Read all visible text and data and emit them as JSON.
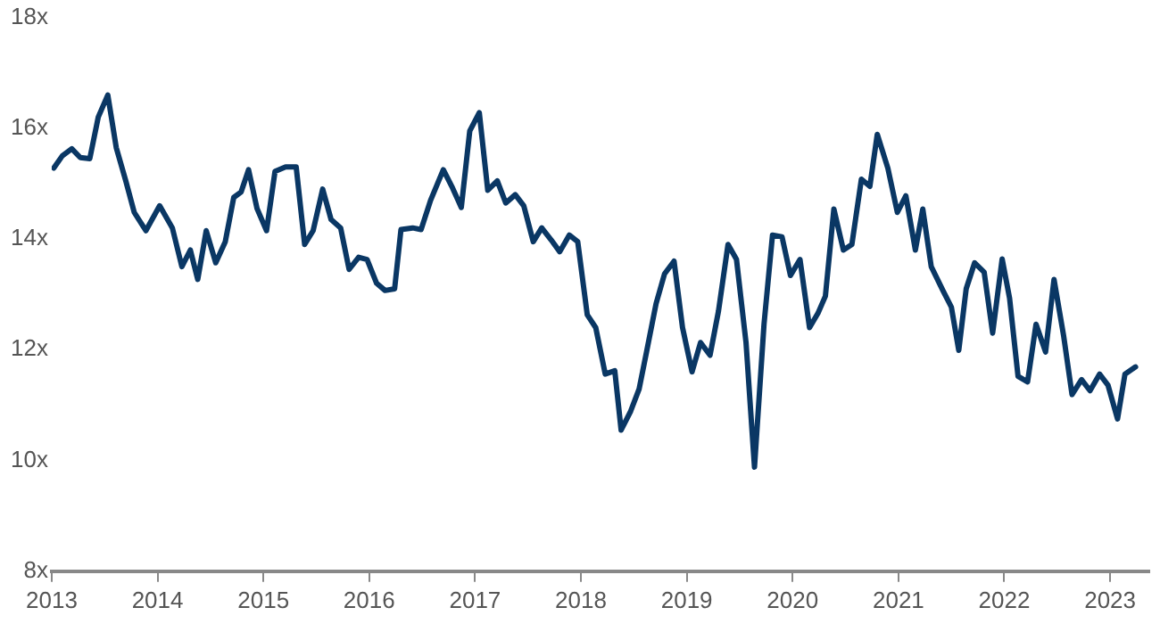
{
  "chart_data": {
    "type": "line",
    "x": [
      2013.02,
      2013.1,
      2013.19,
      2013.27,
      2013.36,
      2013.44,
      2013.53,
      2013.61,
      2013.7,
      2013.78,
      2013.89,
      2014.02,
      2014.14,
      2014.23,
      2014.31,
      2014.38,
      2014.46,
      2014.55,
      2014.64,
      2014.72,
      2014.79,
      2014.86,
      2014.94,
      2015.03,
      2015.11,
      2015.21,
      2015.31,
      2015.39,
      2015.47,
      2015.56,
      2015.64,
      2015.73,
      2015.81,
      2015.9,
      2015.98,
      2016.07,
      2016.15,
      2016.24,
      2016.3,
      2016.41,
      2016.49,
      2016.58,
      2016.7,
      2016.78,
      2016.87,
      2016.95,
      2017.04,
      2017.12,
      2017.21,
      2017.29,
      2017.38,
      2017.46,
      2017.55,
      2017.63,
      2017.72,
      2017.8,
      2017.89,
      2017.97,
      2018.06,
      2018.14,
      2018.23,
      2018.32,
      2018.38,
      2018.47,
      2018.55,
      2018.62,
      2018.71,
      2018.79,
      2018.88,
      2018.96,
      2019.05,
      2019.13,
      2019.22,
      2019.3,
      2019.39,
      2019.47,
      2019.56,
      2019.64,
      2019.73,
      2019.81,
      2019.9,
      2019.98,
      2020.07,
      2020.16,
      2020.24,
      2020.31,
      2020.39,
      2020.48,
      2020.56,
      2020.65,
      2020.73,
      2020.8,
      2020.9,
      2020.99,
      2021.07,
      2021.16,
      2021.23,
      2021.31,
      2021.42,
      2021.5,
      2021.57,
      2021.64,
      2021.72,
      2021.81,
      2021.89,
      2021.98,
      2022.05,
      2022.13,
      2022.22,
      2022.3,
      2022.39,
      2022.47,
      2022.56,
      2022.64,
      2022.73,
      2022.81,
      2022.9,
      2022.98,
      2023.07,
      2023.14,
      2023.24
    ],
    "series": [
      {
        "color": "#0a3764",
        "values": [
          15.28,
          15.5,
          15.63,
          15.47,
          15.45,
          16.2,
          16.6,
          15.65,
          15.05,
          14.48,
          14.15,
          14.6,
          14.2,
          13.5,
          13.8,
          13.27,
          14.15,
          13.57,
          13.95,
          14.75,
          14.85,
          15.25,
          14.55,
          14.15,
          15.22,
          15.3,
          15.3,
          13.9,
          14.15,
          14.9,
          14.35,
          14.2,
          13.45,
          13.67,
          13.63,
          13.2,
          13.07,
          13.1,
          14.17,
          14.2,
          14.17,
          14.7,
          15.25,
          14.95,
          14.57,
          15.95,
          16.28,
          14.88,
          15.05,
          14.65,
          14.8,
          14.6,
          13.95,
          14.2,
          13.98,
          13.77,
          14.07,
          13.95,
          12.63,
          12.4,
          11.56,
          11.62,
          10.55,
          10.89,
          11.29,
          11.96,
          12.83,
          13.37,
          13.6,
          12.4,
          11.6,
          12.13,
          11.9,
          12.7,
          13.9,
          13.63,
          12.13,
          9.88,
          12.46,
          14.07,
          14.04,
          13.34,
          13.63,
          12.4,
          12.66,
          12.97,
          14.54,
          13.8,
          13.9,
          15.08,
          14.95,
          15.89,
          15.28,
          14.48,
          14.78,
          13.8,
          14.54,
          13.5,
          13.07,
          12.77,
          11.99,
          13.1,
          13.57,
          13.4,
          12.3,
          13.64,
          12.93,
          11.52,
          11.42,
          12.46,
          11.96,
          13.27,
          12.26,
          11.19,
          11.46,
          11.26,
          11.56,
          11.36,
          10.75,
          11.56,
          11.69
        ]
      }
    ],
    "xlim": [
      2013,
      2023.37
    ],
    "xticks": [
      2013,
      2014,
      2015,
      2016,
      2017,
      2018,
      2019,
      2020,
      2021,
      2022,
      2023
    ],
    "ylim": [
      8,
      18
    ],
    "yticks": [
      {
        "value": 8,
        "label": "8x"
      },
      {
        "value": 10,
        "label": "10x"
      },
      {
        "value": 12,
        "label": "12x"
      },
      {
        "value": 14,
        "label": "14x"
      },
      {
        "value": 16,
        "label": "16x"
      },
      {
        "value": 18,
        "label": "18x"
      }
    ],
    "grid": false,
    "legend": false,
    "marker": "none",
    "line_style": "solid"
  }
}
